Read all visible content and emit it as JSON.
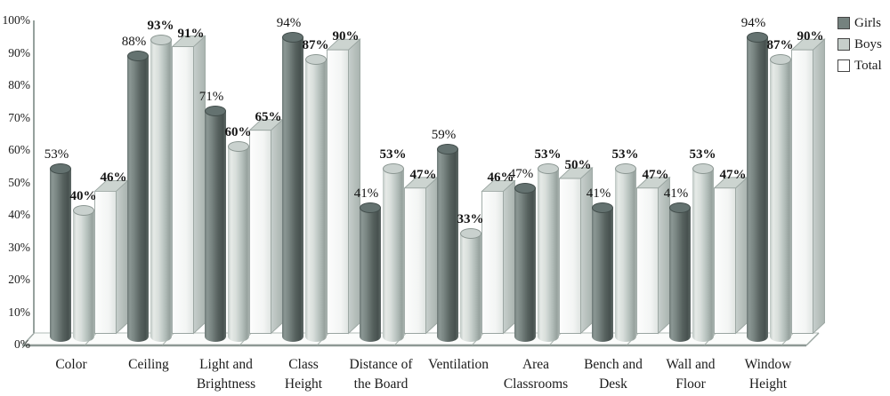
{
  "chart_data": {
    "type": "bar",
    "style": "3d-grouped, Girls/Boys as cylinders, Total as white 3D box",
    "title": "",
    "xlabel": "",
    "ylabel": "",
    "categories": [
      "Color",
      "Ceiling",
      "Light and\nBrightness",
      "Class\nHeight",
      "Distance of\nthe Board",
      "Ventilation",
      "Area\nClassrooms",
      "Bench and\nDesk",
      "Wall and\nFloor",
      "Window\nHeight"
    ],
    "series": [
      {
        "name": "Girls",
        "shape": "cylinder",
        "color": "#5f6b69",
        "label_weight": "normal",
        "values": [
          53,
          88,
          71,
          94,
          41,
          59,
          47,
          41,
          41,
          94
        ]
      },
      {
        "name": "Boys",
        "shape": "cylinder",
        "color": "#c6cfcb",
        "label_weight": "bold",
        "values": [
          40,
          93,
          60,
          87,
          53,
          33,
          53,
          53,
          53,
          87
        ]
      },
      {
        "name": "Total",
        "shape": "box",
        "color": "#ffffff",
        "label_weight": "bold",
        "values": [
          46,
          91,
          65,
          90,
          47,
          46,
          50,
          47,
          47,
          90
        ]
      }
    ],
    "value_suffix": "%",
    "data_labels_shown": true,
    "y_ticks": [
      "0%",
      "10%",
      "20%",
      "30%",
      "40%",
      "50%",
      "60%",
      "70%",
      "80%",
      "90%",
      "100%"
    ],
    "ylim": [
      0,
      100
    ],
    "grid": false,
    "legend_position": "top-right"
  },
  "legend": {
    "items": [
      {
        "label": "Girls",
        "color": "#75827f"
      },
      {
        "label": "Boys",
        "color": "#c6cfcb"
      },
      {
        "label": "Total",
        "color": "#ffffff"
      }
    ]
  },
  "colors": {
    "axis": "#96a19d",
    "floor_edge": "#8d9894",
    "box_outline": "#9aa5a1",
    "text": "#1b1b1b"
  }
}
